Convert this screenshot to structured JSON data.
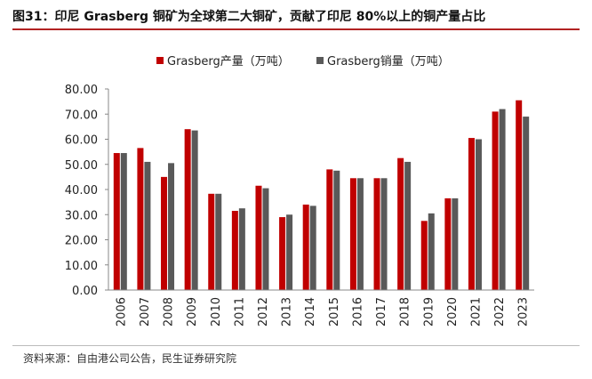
{
  "header": {
    "title": "图31：印尼 Grasberg 铜矿为全球第二大铜矿，贡献了印尼 80%以上的铜产量占比"
  },
  "footer": {
    "source": "资料来源：自由港公司公告，民生证券研究院"
  },
  "colors": {
    "production": "#c00000",
    "sales": "#595959",
    "title_rule": "#b22222"
  },
  "chart_data": {
    "type": "bar",
    "categories": [
      "2006",
      "2007",
      "2008",
      "2009",
      "2010",
      "2011",
      "2012",
      "2013",
      "2014",
      "2015",
      "2016",
      "2017",
      "2018",
      "2019",
      "2020",
      "2021",
      "2022",
      "2023"
    ],
    "series": [
      {
        "name": "Grasberg产量（万吨）",
        "values": [
          54.5,
          56.5,
          45.0,
          64.0,
          38.3,
          31.5,
          41.5,
          29.0,
          34.0,
          48.0,
          44.5,
          44.5,
          52.5,
          27.5,
          36.5,
          60.5,
          71.0,
          75.5
        ]
      },
      {
        "name": "Grasberg销量（万吨）",
        "values": [
          54.5,
          51.0,
          50.5,
          63.5,
          38.3,
          32.5,
          40.5,
          30.0,
          33.5,
          47.5,
          44.5,
          44.5,
          51.0,
          30.5,
          36.5,
          60.0,
          72.0,
          69.0
        ]
      }
    ],
    "yticks": [
      "0.00",
      "10.00",
      "20.00",
      "30.00",
      "40.00",
      "50.00",
      "60.00",
      "70.00",
      "80.00"
    ],
    "ylim": [
      0,
      80
    ],
    "legend": "top",
    "grid": false
  }
}
